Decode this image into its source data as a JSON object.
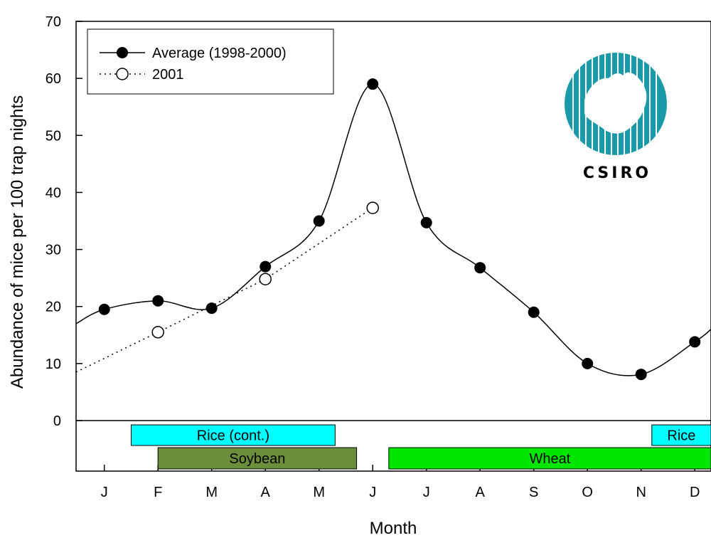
{
  "chart_data": {
    "type": "line",
    "title": "",
    "xlabel": "Month",
    "ylabel": "Abundance of mice per 100 trap nights",
    "categories": [
      "J",
      "F",
      "M",
      "A",
      "M",
      "J",
      "J",
      "A",
      "S",
      "O",
      "N",
      "D"
    ],
    "ylim": [
      0,
      70
    ],
    "yticks": [
      0,
      10,
      20,
      30,
      40,
      50,
      60,
      70
    ],
    "grid": false,
    "legend_position": "top-left",
    "series": [
      {
        "name": "Average (1998-2000)",
        "style": "solid line, filled circles",
        "values": [
          19.5,
          21,
          19.7,
          27,
          35,
          59,
          34.7,
          26.8,
          19,
          10,
          8.1,
          13.8
        ],
        "curve_start": 17,
        "curve_end": 16
      },
      {
        "name": "2001",
        "style": "dotted line, open circles",
        "values": [
          null,
          15.5,
          null,
          24.8,
          null,
          37.3,
          null,
          null,
          null,
          null,
          null,
          null
        ],
        "line_start": 8.5
      }
    ],
    "crop_bars": [
      {
        "label": "Rice (cont.)",
        "color": "#00ffff",
        "row": 1,
        "start": 0.5,
        "end": 4.3
      },
      {
        "label": "Rice",
        "color": "#00ffff",
        "row": 1,
        "start": 10.2,
        "end": 12.5
      },
      {
        "label": "Soybean",
        "color": "#6b8e3a",
        "row": 2,
        "start": 1.0,
        "end": 4.7
      },
      {
        "label": "Wheat",
        "color": "#00e600",
        "row": 2,
        "start": 5.3,
        "end": 11.6
      }
    ]
  },
  "logo": {
    "text": "CSIRO",
    "circle_color": "#1a9aa8"
  }
}
